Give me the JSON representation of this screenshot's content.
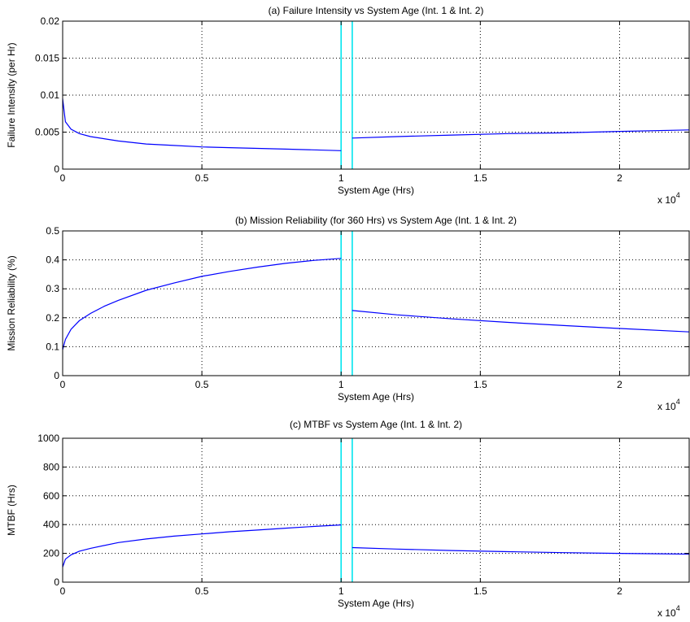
{
  "chart_data": [
    {
      "type": "line",
      "title": "(a) Failure Intensity vs System Age (Int. 1 & Int. 2)",
      "xlabel": "System Age (Hrs)",
      "ylabel": "Failure Intensity (per Hr)",
      "x_multiplier": "x 10",
      "x_multiplier_exp": "4",
      "xlim": [
        0,
        22500
      ],
      "ylim": [
        0,
        0.02
      ],
      "xticks": [
        0,
        5000,
        10000,
        15000,
        20000
      ],
      "xtick_labels": [
        "0",
        "0.5",
        "1",
        "1.5",
        "2"
      ],
      "yticks": [
        0,
        0.005,
        0.01,
        0.015,
        0.02
      ],
      "ytick_labels": [
        "0",
        "0.005",
        "0.01",
        "0.015",
        "0.02"
      ],
      "grid": true,
      "line_color": "#0000ff",
      "marker_color": "#00e5ee",
      "vlines": [
        10000,
        10400
      ],
      "series": [
        {
          "x": [
            0,
            100,
            300,
            600,
            1000,
            2000,
            3000,
            4000,
            5000,
            6000,
            7000,
            8000,
            9000,
            10000
          ],
          "y": [
            0.0095,
            0.0064,
            0.0054,
            0.0048,
            0.0044,
            0.0038,
            0.0034,
            0.0032,
            0.003,
            0.0029,
            0.0028,
            0.0027,
            0.0026,
            0.0025
          ]
        },
        {
          "x": [
            10400,
            12000,
            14000,
            16000,
            18000,
            20000,
            22500
          ],
          "y": [
            0.0042,
            0.0044,
            0.0046,
            0.0048,
            0.0049,
            0.0051,
            0.0053
          ]
        }
      ]
    },
    {
      "type": "line",
      "title": "(b) Mission Reliability (for 360 Hrs) vs System Age (Int. 1 & Int. 2)",
      "xlabel": "System Age (Hrs)",
      "ylabel": "Mission Reliability (%)",
      "x_multiplier": "x 10",
      "x_multiplier_exp": "4",
      "xlim": [
        0,
        22500
      ],
      "ylim": [
        0,
        0.5
      ],
      "xticks": [
        0,
        5000,
        10000,
        15000,
        20000
      ],
      "xtick_labels": [
        "0",
        "0.5",
        "1",
        "1.5",
        "2"
      ],
      "yticks": [
        0,
        0.1,
        0.2,
        0.3,
        0.4,
        0.5
      ],
      "ytick_labels": [
        "0",
        "0.1",
        "0.2",
        "0.3",
        "0.4",
        "0.5"
      ],
      "grid": true,
      "line_color": "#0000ff",
      "marker_color": "#00e5ee",
      "vlines": [
        10000,
        10400
      ],
      "series": [
        {
          "x": [
            0,
            100,
            300,
            600,
            1000,
            1500,
            2000,
            3000,
            4000,
            5000,
            6000,
            7000,
            8000,
            9000,
            10000
          ],
          "y": [
            0.09,
            0.125,
            0.16,
            0.19,
            0.215,
            0.24,
            0.26,
            0.295,
            0.32,
            0.343,
            0.36,
            0.375,
            0.388,
            0.398,
            0.405
          ]
        },
        {
          "x": [
            10400,
            12000,
            14000,
            16000,
            18000,
            20000,
            22500
          ],
          "y": [
            0.225,
            0.21,
            0.196,
            0.184,
            0.173,
            0.163,
            0.151
          ]
        }
      ]
    },
    {
      "type": "line",
      "title": "(c) MTBF vs System Age (Int. 1 & Int. 2)",
      "xlabel": "System Age (Hrs)",
      "ylabel": "MTBF (Hrs)",
      "x_multiplier": "x 10",
      "x_multiplier_exp": "4",
      "xlim": [
        0,
        22500
      ],
      "ylim": [
        0,
        1000
      ],
      "xticks": [
        0,
        5000,
        10000,
        15000,
        20000
      ],
      "xtick_labels": [
        "0",
        "0.5",
        "1",
        "1.5",
        "2"
      ],
      "yticks": [
        0,
        200,
        400,
        600,
        800,
        1000
      ],
      "ytick_labels": [
        "0",
        "200",
        "400",
        "600",
        "800",
        "1000"
      ],
      "grid": true,
      "line_color": "#0000ff",
      "marker_color": "#00e5ee",
      "vlines": [
        10000,
        10400
      ],
      "series": [
        {
          "x": [
            0,
            100,
            300,
            600,
            1000,
            2000,
            3000,
            4000,
            5000,
            6000,
            7000,
            8000,
            9000,
            10000
          ],
          "y": [
            105,
            160,
            190,
            215,
            235,
            275,
            300,
            320,
            335,
            350,
            362,
            375,
            387,
            398
          ]
        },
        {
          "x": [
            10400,
            12000,
            14000,
            16000,
            18000,
            20000,
            22500
          ],
          "y": [
            240,
            230,
            220,
            212,
            205,
            200,
            195
          ]
        }
      ]
    }
  ]
}
